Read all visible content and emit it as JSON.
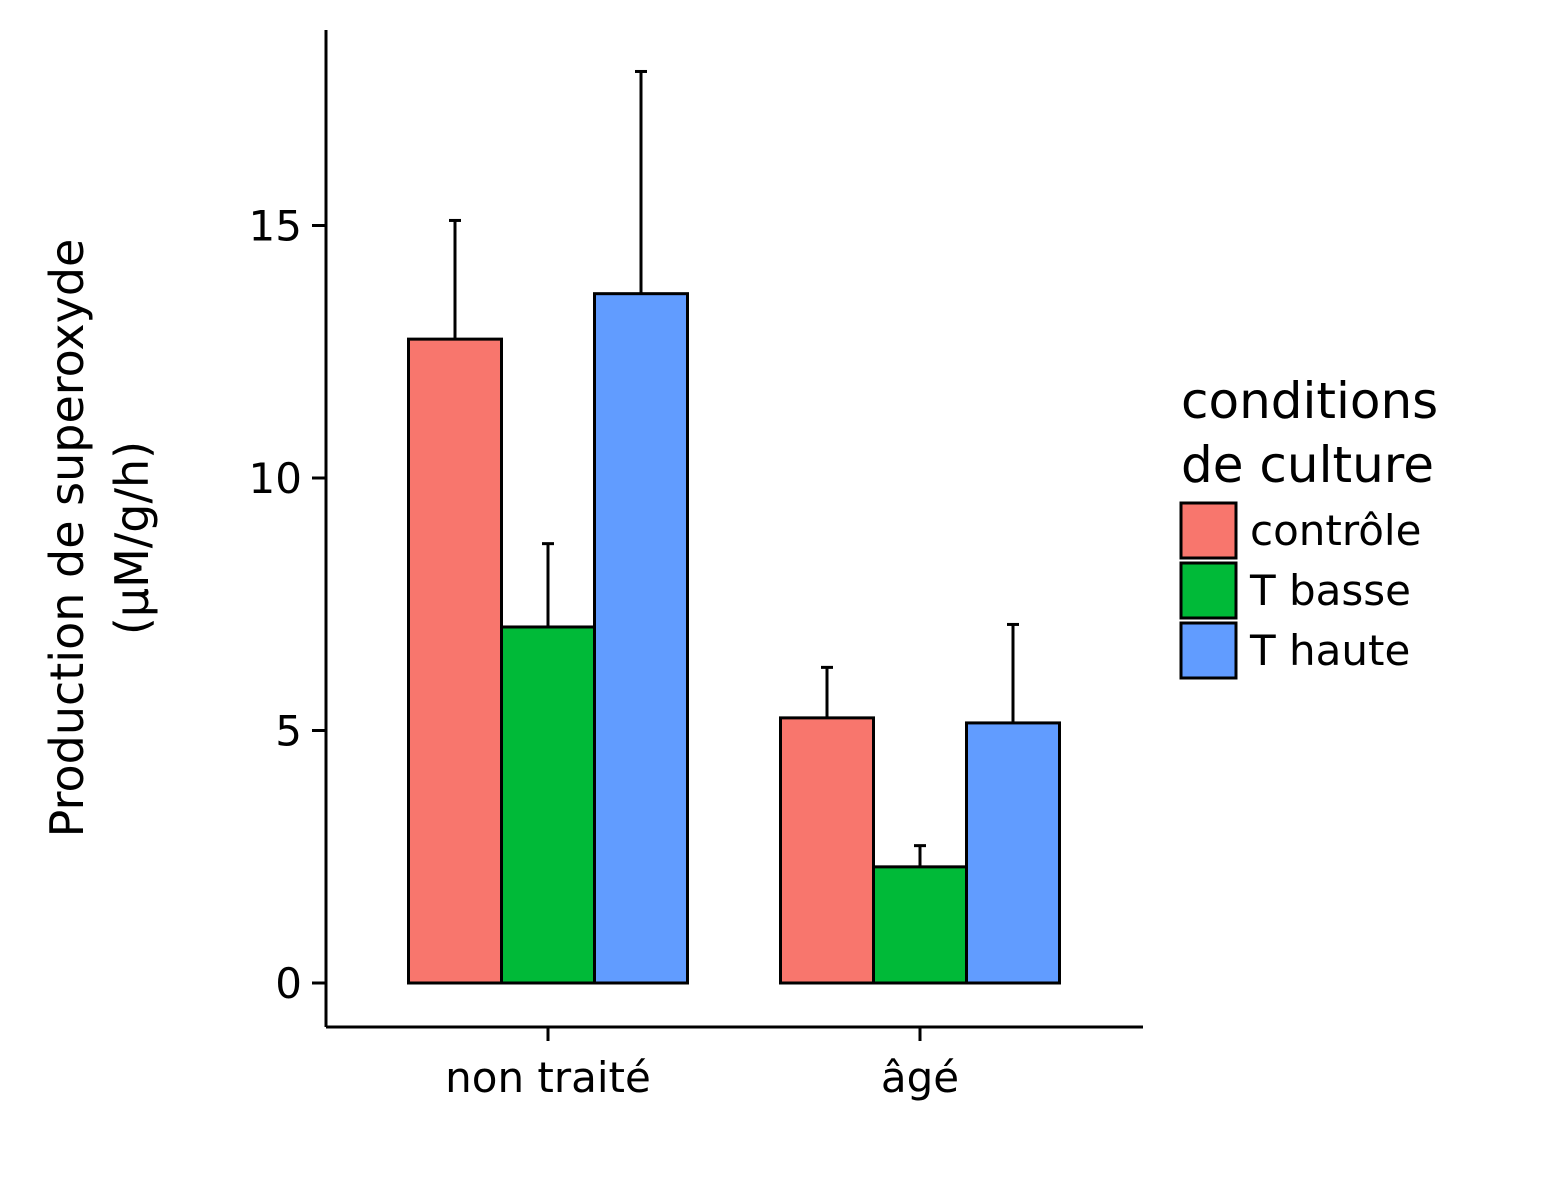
{
  "chart_data": {
    "type": "bar",
    "title": "",
    "xlabel": "",
    "ylabel_lines": [
      "Production de superoxyde",
      "(µM/g/h)"
    ],
    "categories": [
      "non traité",
      "âgé"
    ],
    "ylim": [
      -0.85,
      19
    ],
    "yticks": [
      0,
      5,
      10,
      15
    ],
    "ytick_labels": [
      "0",
      "5",
      "10",
      "15"
    ],
    "legend_title_lines": [
      "conditions",
      "de culture"
    ],
    "legend_position": "right",
    "grid": false,
    "series": [
      {
        "name": "contrôle",
        "color": "#F8766D",
        "values": [
          12.75,
          5.25
        ],
        "errors": [
          2.35,
          1.0
        ]
      },
      {
        "name": "T basse",
        "color": "#00BA38",
        "values": [
          7.05,
          2.3
        ],
        "errors": [
          1.65,
          0.42
        ]
      },
      {
        "name": "T haute",
        "color": "#619CFF",
        "values": [
          13.65,
          5.15
        ],
        "errors": [
          4.4,
          1.95
        ]
      }
    ]
  }
}
